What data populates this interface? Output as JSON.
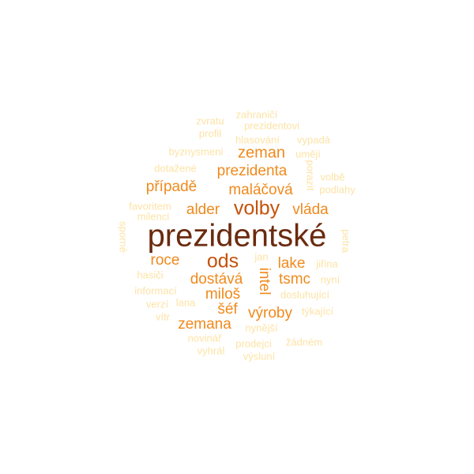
{
  "palette": {
    "darkest": "#6b2a0e",
    "dark": "#c5520a",
    "medium": "#ef8a1d",
    "light": "#f6b452",
    "lightest": "#fde3a6"
  },
  "words": [
    {
      "text": "prezidentské",
      "tier": "darkest"
    },
    {
      "text": "volby",
      "tier": "dark"
    },
    {
      "text": "ods",
      "tier": "dark"
    },
    {
      "text": "zeman",
      "tier": "medium"
    },
    {
      "text": "prezidenta",
      "tier": "medium"
    },
    {
      "text": "případě",
      "tier": "medium"
    },
    {
      "text": "maláčová",
      "tier": "medium"
    },
    {
      "text": "alder",
      "tier": "medium"
    },
    {
      "text": "vláda",
      "tier": "medium"
    },
    {
      "text": "roce",
      "tier": "medium"
    },
    {
      "text": "lake",
      "tier": "medium"
    },
    {
      "text": "intel",
      "tier": "medium"
    },
    {
      "text": "dostává",
      "tier": "medium"
    },
    {
      "text": "tsmc",
      "tier": "medium"
    },
    {
      "text": "miloš",
      "tier": "medium"
    },
    {
      "text": "šéf",
      "tier": "medium"
    },
    {
      "text": "výroby",
      "tier": "medium"
    },
    {
      "text": "zemana",
      "tier": "medium"
    },
    {
      "text": "zahraničí",
      "tier": "lightest"
    },
    {
      "text": "zvratu",
      "tier": "lightest"
    },
    {
      "text": "prezidentovi",
      "tier": "lightest"
    },
    {
      "text": "profil",
      "tier": "lightest"
    },
    {
      "text": "hlasování",
      "tier": "lightest"
    },
    {
      "text": "vypadá",
      "tier": "lightest"
    },
    {
      "text": "byznysmeni",
      "tier": "lightest"
    },
    {
      "text": "umějí",
      "tier": "lightest"
    },
    {
      "text": "dotažené",
      "tier": "lightest"
    },
    {
      "text": "porazit",
      "tier": "lightest"
    },
    {
      "text": "volbě",
      "tier": "lightest"
    },
    {
      "text": "podlahy",
      "tier": "lightest"
    },
    {
      "text": "favoritem",
      "tier": "lightest"
    },
    {
      "text": "milenci",
      "tier": "lightest"
    },
    {
      "text": "sporné",
      "tier": "lightest"
    },
    {
      "text": "petra",
      "tier": "lightest"
    },
    {
      "text": "jan",
      "tier": "lightest"
    },
    {
      "text": "jiřina",
      "tier": "lightest"
    },
    {
      "text": "hasiči",
      "tier": "lightest"
    },
    {
      "text": "nyní",
      "tier": "lightest"
    },
    {
      "text": "informací",
      "tier": "lightest"
    },
    {
      "text": "dosluhující",
      "tier": "lightest"
    },
    {
      "text": "verzí",
      "tier": "lightest"
    },
    {
      "text": "lana",
      "tier": "lightest"
    },
    {
      "text": "týkající",
      "tier": "lightest"
    },
    {
      "text": "vítr",
      "tier": "lightest"
    },
    {
      "text": "nynější",
      "tier": "lightest"
    },
    {
      "text": "novinář",
      "tier": "lightest"
    },
    {
      "text": "prodejci",
      "tier": "lightest"
    },
    {
      "text": "žádném",
      "tier": "lightest"
    },
    {
      "text": "vyhrál",
      "tier": "lightest"
    },
    {
      "text": "výsluní",
      "tier": "lightest"
    }
  ]
}
